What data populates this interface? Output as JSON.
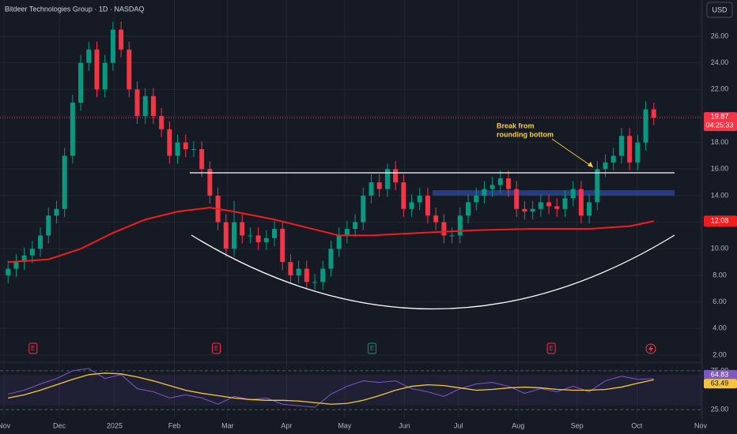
{
  "ui": {
    "title": "Bitdeer Technologies Group · 1D · NASDAQ",
    "currency": "USD",
    "annotation_lines": [
      "Break from",
      "rounding bottom"
    ],
    "events": [
      {
        "label": "E",
        "x": 3.1,
        "color": "#f23645"
      },
      {
        "label": "E",
        "x": 25.8,
        "color": "#f23645"
      },
      {
        "label": "E",
        "x": 45.1,
        "color": "#089981"
      },
      {
        "label": "E",
        "x": 67.3,
        "color": "#f23645"
      }
    ]
  },
  "chart_data": [
    {
      "type": "candlestick",
      "up_color": "#089981",
      "down_color": "#f23645",
      "grid": true,
      "xlim": [
        -1,
        86
      ],
      "ylim": [
        1.52,
        28.73
      ],
      "yticks": [
        {
          "value": 2,
          "label": "2.00"
        },
        {
          "value": 4,
          "label": "4.00"
        },
        {
          "value": 6,
          "label": "6.00"
        },
        {
          "value": 8,
          "label": "8.00"
        },
        {
          "value": 10,
          "label": "10.00"
        },
        {
          "value": 12,
          "label": "12.00"
        },
        {
          "value": 14,
          "label": "14.00"
        },
        {
          "value": 16,
          "label": "16.00"
        },
        {
          "value": 18,
          "label": "18.00"
        },
        {
          "value": 20,
          "label": "20.00"
        },
        {
          "value": 22,
          "label": "22.00"
        },
        {
          "value": 24,
          "label": "24.00"
        },
        {
          "value": 26,
          "label": "26.00"
        }
      ],
      "xticks": [
        {
          "value": -0.5,
          "label": "Nov"
        },
        {
          "value": 6.35,
          "label": "Dec"
        },
        {
          "value": 13.2,
          "label": "2025"
        },
        {
          "value": 20.6,
          "label": "Feb"
        },
        {
          "value": 27.2,
          "label": "Mar"
        },
        {
          "value": 34.5,
          "label": "Apr"
        },
        {
          "value": 41.7,
          "label": "May"
        },
        {
          "value": 49.1,
          "label": "Jun"
        },
        {
          "value": 55.8,
          "label": "Jul"
        },
        {
          "value": 63.2,
          "label": "Aug"
        },
        {
          "value": 70.5,
          "label": "Sep"
        },
        {
          "value": 77.9,
          "label": "Oct"
        },
        {
          "value": 85.8,
          "label": "Nov"
        }
      ],
      "open": [
        8,
        8.5,
        9,
        9.5,
        10,
        11,
        12.5,
        13,
        17,
        21,
        24,
        25,
        22,
        24,
        26.5,
        25,
        22,
        20,
        21.5,
        20,
        19,
        17,
        18,
        17.5,
        17.5,
        16,
        14,
        12,
        10,
        12,
        11,
        11,
        10.5,
        10.8,
        11.5,
        9,
        8,
        8.5,
        7.5,
        7.5,
        8.5,
        10,
        11,
        11.5,
        12,
        14,
        15,
        14.5,
        16,
        15,
        13,
        13.5,
        14,
        12.5,
        12,
        11,
        11,
        12.5,
        13.5,
        14,
        14.5,
        14.8,
        15.3,
        14.5,
        13,
        12.8,
        13,
        13.5,
        13.2,
        13,
        13.8,
        14.5,
        12.5,
        13.5,
        16,
        16.5,
        17,
        18.5,
        16.5,
        18,
        20.5
      ],
      "high": [
        9.1,
        9.6,
        10.1,
        10.6,
        11.6,
        13.1,
        13.6,
        17.6,
        21.6,
        24.6,
        25.6,
        25.6,
        24.6,
        27.1,
        27.1,
        25.6,
        22.6,
        22.1,
        22.1,
        20.6,
        19.6,
        18.6,
        18.6,
        18.1,
        18.1,
        16.6,
        14.6,
        12.6,
        13.6,
        12.6,
        11.6,
        11.6,
        11.4,
        12.1,
        12.1,
        9.6,
        9.1,
        9.1,
        8.1,
        9.1,
        10.6,
        11.6,
        12.1,
        12.6,
        14.6,
        15.6,
        15.6,
        16.4,
        16.6,
        15.6,
        14.1,
        14.6,
        14.6,
        13.1,
        12.6,
        11.6,
        13.1,
        14.1,
        14.6,
        15.1,
        15.4,
        15.9,
        15.9,
        15.1,
        13.6,
        13.6,
        14.1,
        14.1,
        13.8,
        14.4,
        15.1,
        15.1,
        14.1,
        16.6,
        17.1,
        17.6,
        19.1,
        19.1,
        18.6,
        21.1,
        21
      ],
      "low": [
        7.4,
        7.9,
        8.4,
        8.9,
        9.4,
        10.4,
        11.9,
        12.4,
        16.4,
        20.4,
        23.4,
        21.4,
        21.4,
        23.4,
        24.4,
        21.4,
        19.4,
        19.4,
        19.4,
        18.4,
        16.4,
        16.4,
        16.9,
        16.9,
        15.4,
        13.4,
        11.4,
        9.4,
        9.4,
        10.4,
        10.4,
        9.9,
        9.9,
        10.2,
        8.4,
        7.4,
        7.4,
        6.9,
        6.9,
        6.9,
        7.9,
        9.4,
        10.4,
        10.9,
        11.4,
        13.4,
        13.9,
        13.9,
        14.4,
        12.4,
        12.4,
        12.9,
        11.9,
        11.4,
        10.4,
        10.4,
        10.4,
        11.9,
        12.9,
        13.4,
        13.9,
        14.2,
        13.9,
        12.4,
        12.2,
        12.2,
        12.4,
        12.6,
        12.4,
        12.4,
        13.2,
        11.9,
        11.9,
        12.9,
        15.4,
        15.9,
        16.4,
        15.9,
        15.9,
        17.4,
        19.3
      ],
      "close": [
        8.5,
        9,
        9.5,
        10,
        11,
        12.5,
        13,
        17,
        21,
        24,
        25,
        22,
        24,
        26.5,
        25,
        22,
        20,
        21.5,
        20,
        19,
        17,
        18,
        17.5,
        17.5,
        16,
        14,
        12,
        10,
        12,
        11,
        11,
        10.5,
        10.8,
        11.5,
        9,
        8,
        8.5,
        7.5,
        7.5,
        8.5,
        10,
        11,
        11.5,
        12,
        14,
        15,
        14.5,
        16,
        15,
        13,
        13.5,
        14,
        12.5,
        12,
        11,
        11,
        12.5,
        13.5,
        14,
        14.5,
        14.8,
        15.3,
        14.5,
        13,
        12.8,
        13,
        13.5,
        13.2,
        13,
        13.8,
        14.5,
        12.5,
        13.5,
        16,
        16.5,
        17,
        18.5,
        16.5,
        18,
        20.5,
        19.87
      ],
      "last_price": 19.87,
      "countdown": "04:25:33",
      "ma": {
        "color": "#f21d1d",
        "x": [
          0,
          5,
          9,
          13,
          17,
          21,
          25,
          28,
          33,
          37,
          41,
          45,
          51,
          58,
          65,
          72,
          77,
          80
        ],
        "values": [
          9,
          9.2,
          10,
          11.2,
          12.2,
          12.8,
          13.1,
          12.8,
          12.2,
          11.6,
          11,
          11,
          11.2,
          11.4,
          11.5,
          11.5,
          11.7,
          12.08
        ]
      }
    },
    {
      "type": "line",
      "ylim": [
        17,
        83
      ],
      "yticks": [
        {
          "value": 75,
          "label": "75.00"
        },
        {
          "value": 25,
          "label": "25.00"
        }
      ],
      "x": [
        0,
        2,
        4,
        6,
        8,
        10,
        12,
        14,
        16,
        18,
        20,
        22,
        24,
        26,
        28,
        30,
        32,
        34,
        36,
        38,
        40,
        42,
        44,
        46,
        48,
        50,
        52,
        54,
        56,
        58,
        60,
        62,
        64,
        66,
        68,
        70,
        72,
        74,
        76,
        78,
        80
      ],
      "series": [
        {
          "color": "#7e57c2",
          "values": [
            45,
            50,
            58,
            65,
            75,
            78,
            65,
            70,
            52,
            48,
            40,
            44,
            40,
            32,
            42,
            38,
            40,
            32,
            30,
            28,
            45,
            55,
            62,
            60,
            62,
            52,
            48,
            42,
            52,
            58,
            60,
            55,
            46,
            52,
            48,
            55,
            48,
            62,
            68,
            64,
            64.83
          ]
        },
        {
          "color": "#f5c542",
          "values": [
            40,
            44,
            50,
            57,
            64,
            70,
            72,
            71,
            67,
            62,
            56,
            50,
            46,
            43,
            40,
            38,
            37,
            37,
            36,
            34,
            32,
            33,
            37,
            43,
            50,
            55,
            57,
            56,
            53,
            50,
            51,
            53,
            54,
            53,
            51,
            50,
            50,
            51,
            54,
            59,
            63.49
          ]
        }
      ]
    }
  ]
}
